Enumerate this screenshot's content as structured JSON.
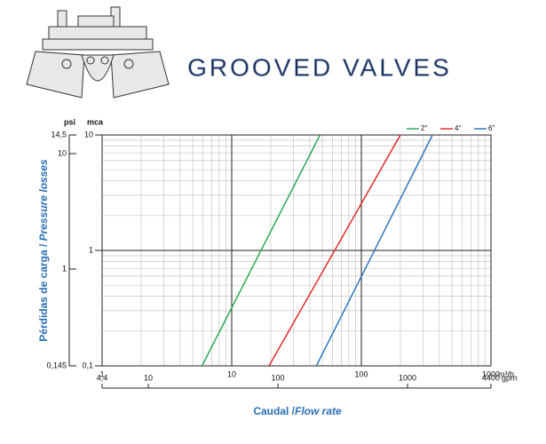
{
  "header": {
    "title": "GROOVED VALVES"
  },
  "chart_data": {
    "type": "line",
    "xlabel": [
      "Caudal /",
      "Flow rate"
    ],
    "ylabel": [
      "Pérdidas de carga / ",
      "Pressure losses"
    ],
    "xunit": "m³/h",
    "x2unit": "gpm",
    "yunit": "mca",
    "y2unit": "psi",
    "xlog": true,
    "ylog": true,
    "grid": true,
    "legend": "top-right",
    "xlim": [
      1,
      1000
    ],
    "xticks": [
      1,
      10,
      100,
      1000
    ],
    "x2lim": [
      4.4,
      4400
    ],
    "x2ticks": [
      {
        "value": 4.4,
        "label": "4,4"
      },
      10,
      100,
      1000,
      4400
    ],
    "ylim": [
      0.1,
      10
    ],
    "yticks": [
      {
        "value": 0.1,
        "label": "0,1"
      },
      1,
      10
    ],
    "y2lim": [
      0.145,
      14.5
    ],
    "y2ticks": [
      {
        "value": 0.145,
        "label": "0,145"
      },
      1,
      10,
      {
        "value": 14.5,
        "label": "14,5"
      }
    ],
    "series": [
      {
        "name": "2\"",
        "color": "#1aa64a",
        "x": [
          5.9,
          48
        ],
        "values": [
          0.1,
          10
        ]
      },
      {
        "name": "4\"",
        "color": "#e0201c",
        "x": [
          19.4,
          200
        ],
        "values": [
          0.1,
          10
        ]
      },
      {
        "name": "6\"",
        "color": "#1f6fbf",
        "x": [
          45,
          354
        ],
        "values": [
          0.1,
          10
        ]
      }
    ]
  }
}
